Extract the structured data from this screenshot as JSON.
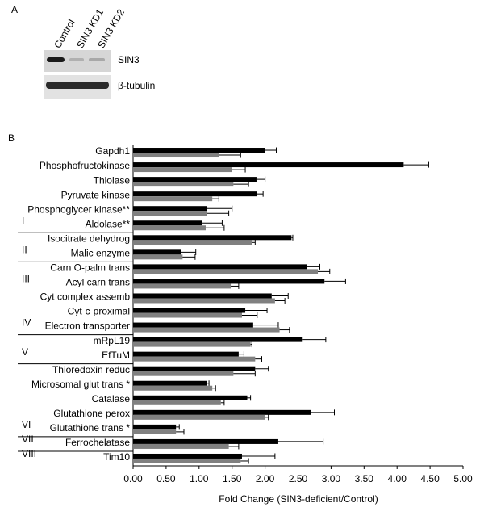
{
  "panel_a": {
    "label": "A",
    "lanes": [
      "Control",
      "SIN3 KD1",
      "SIN3 KD2"
    ],
    "blots": [
      "SIN3",
      "β-tubulin"
    ]
  },
  "chart_data": {
    "type": "bar",
    "panel_label": "B",
    "orientation": "horizontal",
    "categories": [
      "Gapdh1",
      "Phosphofructokinase",
      "Thiolase",
      "Pyruvate kinase",
      "Phosphoglycer kinase**",
      "Aldolase**",
      "Isocitrate dehydrog",
      "Malic enzyme",
      "Carn O-palm trans",
      "Acyl carn trans",
      "Cyt complex assemb",
      "Cyt-c-proximal",
      "Electron transporter",
      "mRpL19",
      "EfTuM",
      "Thioredoxin reduc",
      "Microsomal glut trans *",
      "Catalase",
      "Glutathione perox",
      "Glutathione trans *",
      "Ferrochelatase",
      "Tim10"
    ],
    "category_groups": [
      null,
      null,
      null,
      null,
      null,
      "I",
      null,
      "II",
      null,
      "III",
      null,
      null,
      "IV",
      null,
      "V",
      null,
      null,
      null,
      null,
      "VI",
      "VII",
      "VIII"
    ],
    "series": [
      {
        "color": "#000000",
        "values": [
          2.0,
          4.1,
          1.87,
          1.88,
          1.12,
          1.05,
          2.4,
          0.73,
          2.63,
          2.9,
          2.1,
          1.7,
          1.82,
          2.57,
          1.6,
          1.85,
          1.12,
          1.73,
          2.7,
          0.65,
          2.2,
          1.65
        ],
        "errors": [
          0.17,
          0.38,
          0.13,
          0.09,
          0.38,
          0.3,
          0.02,
          0.22,
          0.2,
          0.32,
          0.25,
          0.33,
          0.38,
          0.35,
          0.08,
          0.2,
          0.03,
          0.05,
          0.35,
          0.05,
          0.68,
          0.5
        ]
      },
      {
        "color": "#808080",
        "values": [
          1.3,
          1.5,
          1.52,
          1.2,
          1.12,
          1.1,
          1.8,
          0.75,
          2.8,
          1.48,
          2.15,
          1.65,
          2.22,
          1.78,
          1.85,
          1.52,
          1.2,
          1.33,
          2.0,
          0.65,
          1.45,
          1.63
        ],
        "errors": [
          0.33,
          0.2,
          0.23,
          0.1,
          0.33,
          0.28,
          0.05,
          0.19,
          0.18,
          0.12,
          0.15,
          0.23,
          0.15,
          0.02,
          0.1,
          0.33,
          0.05,
          0.05,
          0.05,
          0.12,
          0.15,
          0.12
        ]
      }
    ],
    "xlabel": "Fold Change (SIN3-deficient/Control)",
    "xlim": [
      0,
      5
    ],
    "xticks": [
      {
        "value": 0,
        "label": "0.00"
      },
      {
        "value": 0.5,
        "label": "0.50"
      },
      {
        "value": 1,
        "label": "1.00"
      },
      {
        "value": 1.5,
        "label": "1.50"
      },
      {
        "value": 2,
        "label": "2.00"
      },
      {
        "value": 2.5,
        "label": "2.50"
      },
      {
        "value": 3,
        "label": "3.00"
      },
      {
        "value": 3.5,
        "label": "3.50"
      },
      {
        "value": 4,
        "label": "4.00"
      },
      {
        "value": 4.5,
        "label": "4.50"
      },
      {
        "value": 5,
        "label": "5.00"
      }
    ]
  }
}
